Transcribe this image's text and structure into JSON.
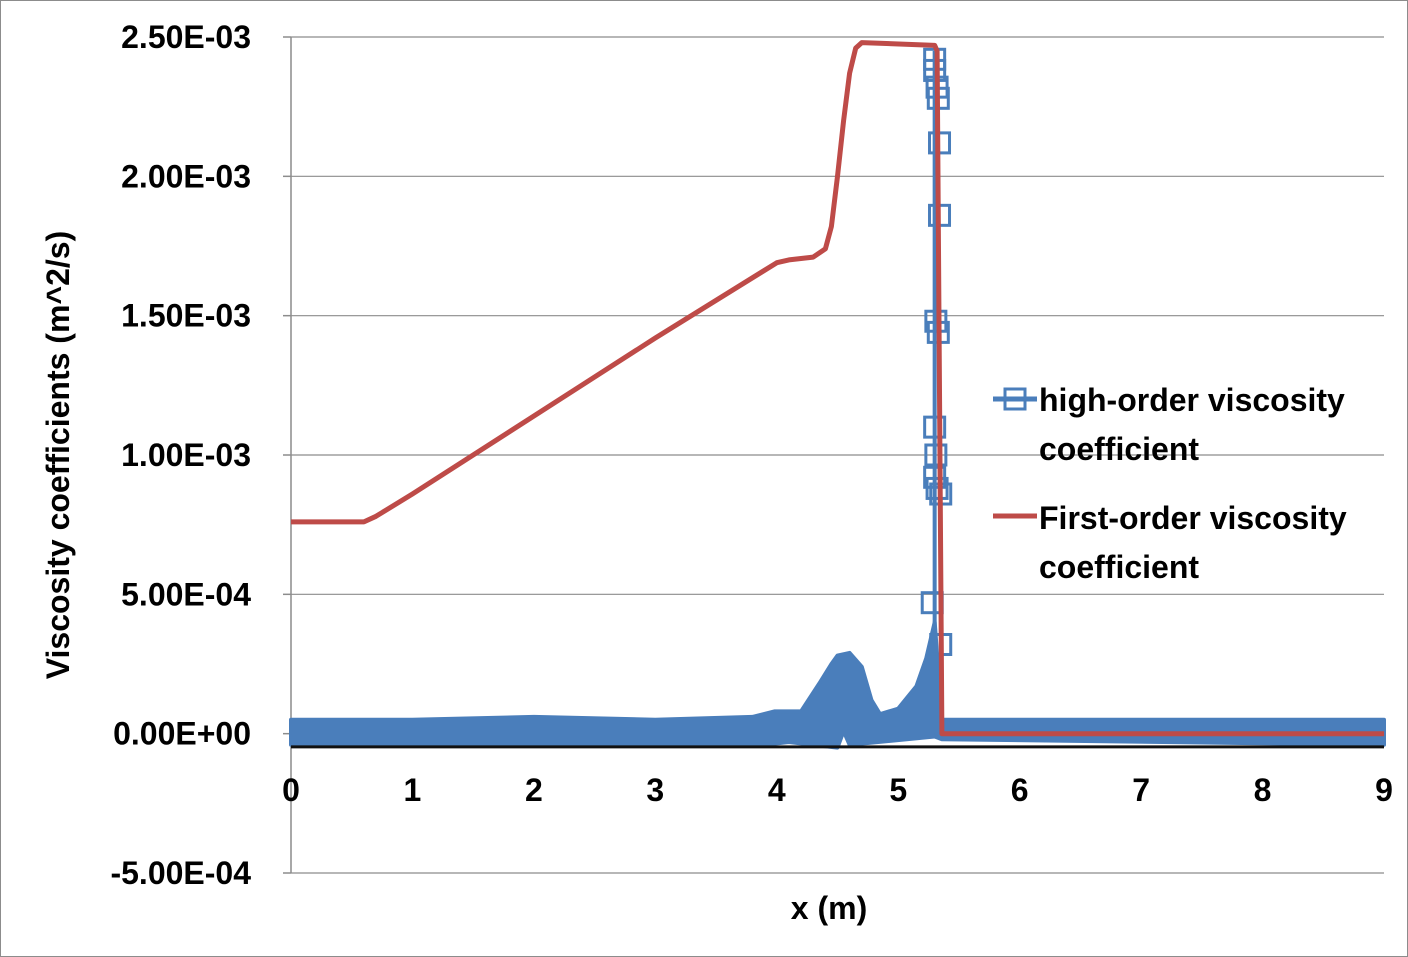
{
  "chart_data": {
    "type": "line",
    "title": "",
    "xlabel": "x (m)",
    "ylabel": "Viscosity coefficients (m^2/s)",
    "xlim": [
      0,
      9
    ],
    "ylim": [
      -0.0005,
      0.0025
    ],
    "x_ticks": [
      0,
      1,
      2,
      3,
      4,
      5,
      6,
      7,
      8,
      9
    ],
    "x_tick_labels": [
      "0",
      "1",
      "2",
      "3",
      "4",
      "5",
      "6",
      "7",
      "8",
      "9"
    ],
    "y_ticks": [
      -0.0005,
      0,
      0.0005,
      0.001,
      0.0015,
      0.002,
      0.0025
    ],
    "y_tick_labels": [
      "-5.00E-04",
      "0.00E+00",
      "5.00E-04",
      "1.00E-03",
      "1.50E-03",
      "2.00E-03",
      "2.50E-03"
    ],
    "grid": "horizontal",
    "legend_position": "right",
    "series": [
      {
        "name": "high-order viscosity coefficient",
        "color": "#4a7ebb",
        "marker": "open-square",
        "band_top": [
          [
            0,
            5e-05
          ],
          [
            1,
            5e-05
          ],
          [
            2,
            6e-05
          ],
          [
            3,
            5e-05
          ],
          [
            3.8,
            6e-05
          ],
          [
            3.98,
            8e-05
          ],
          [
            4.2,
            8e-05
          ],
          [
            4.35,
            0.00018
          ],
          [
            4.45,
            0.00025
          ],
          [
            4.5,
            0.00028
          ],
          [
            4.6,
            0.00029
          ],
          [
            4.7,
            0.00024
          ],
          [
            4.78,
            0.00012
          ],
          [
            4.85,
            7e-05
          ],
          [
            5.0,
            9e-05
          ],
          [
            5.15,
            0.00017
          ],
          [
            5.23,
            0.00027
          ],
          [
            5.3,
            0.0004
          ],
          [
            5.36,
            5e-05
          ],
          [
            9,
            5e-05
          ]
        ],
        "band_bottom": [
          [
            0,
            -4e-05
          ],
          [
            3.9,
            -4e-05
          ],
          [
            4.1,
            -3e-05
          ],
          [
            4.5,
            -5e-05
          ],
          [
            4.55,
            1e-05
          ],
          [
            4.6,
            -4e-05
          ],
          [
            5.3,
            -1e-05
          ],
          [
            5.36,
            -2e-05
          ],
          [
            9,
            -4e-05
          ]
        ],
        "spike_points": [
          [
            5.3,
            0.00242
          ],
          [
            5.3,
            0.00238
          ],
          [
            5.32,
            0.00232
          ],
          [
            5.33,
            0.00228
          ],
          [
            5.34,
            0.00212
          ],
          [
            5.34,
            0.00186
          ],
          [
            5.31,
            0.00148
          ],
          [
            5.33,
            0.00144
          ],
          [
            5.3,
            0.0011
          ],
          [
            5.31,
            0.001
          ],
          [
            5.3,
            0.00092
          ],
          [
            5.32,
            0.00088
          ],
          [
            5.35,
            0.00086
          ],
          [
            5.28,
            0.00047
          ],
          [
            5.35,
            0.00032
          ]
        ]
      },
      {
        "name": "First-order viscosity coefficient",
        "color": "#be4b48",
        "values": [
          [
            0,
            0.00076
          ],
          [
            0.6,
            0.00076
          ],
          [
            0.7,
            0.00078
          ],
          [
            1,
            0.00086
          ],
          [
            2,
            0.00114
          ],
          [
            3,
            0.00142
          ],
          [
            4,
            0.00169
          ],
          [
            4.1,
            0.0017
          ],
          [
            4.3,
            0.00171
          ],
          [
            4.4,
            0.00174
          ],
          [
            4.45,
            0.00182
          ],
          [
            4.5,
            0.002
          ],
          [
            4.55,
            0.0022
          ],
          [
            4.6,
            0.00237
          ],
          [
            4.65,
            0.00246
          ],
          [
            4.7,
            0.00248
          ],
          [
            5.3,
            0.00247
          ],
          [
            5.32,
            0.00245
          ],
          [
            5.36,
            0.0
          ],
          [
            9,
            0.0
          ]
        ]
      }
    ]
  }
}
